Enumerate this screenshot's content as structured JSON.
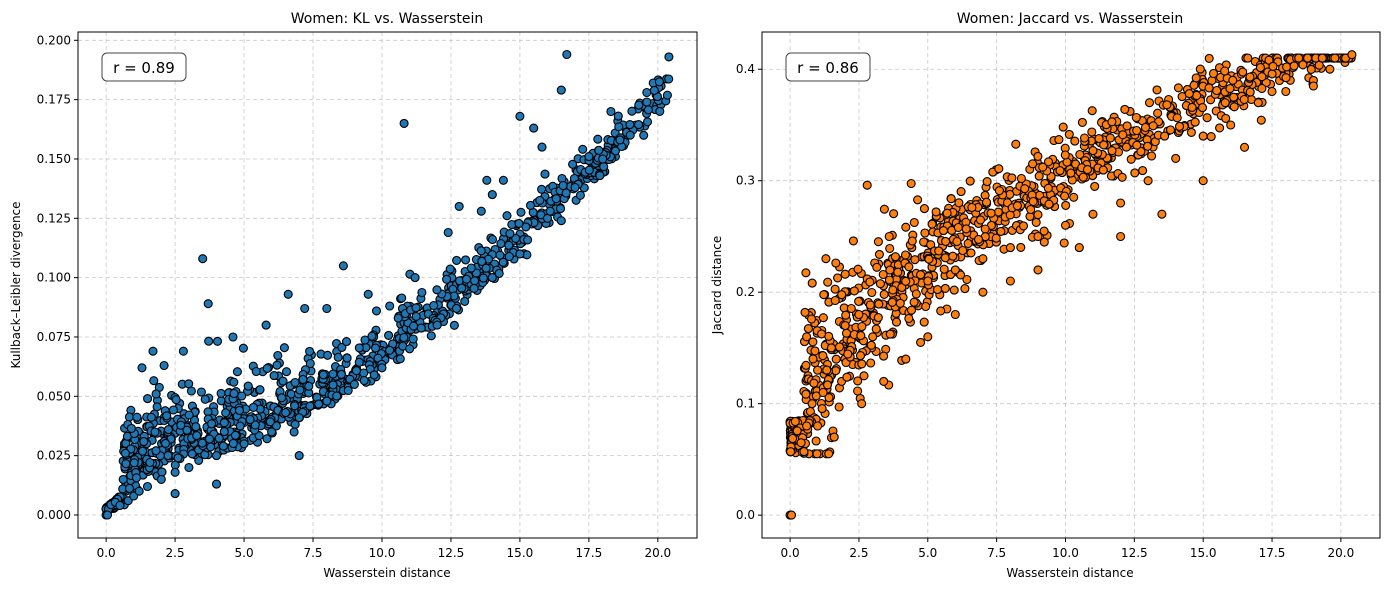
{
  "chart_data": [
    {
      "type": "scatter",
      "title": "Women: KL vs. Wasserstein",
      "xlabel": "Wasserstein distance",
      "ylabel": "Kullback–Leibler divergence",
      "xlim": [
        -1.02,
        21.42
      ],
      "ylim": [
        -0.0097,
        0.2035
      ],
      "xticks": [
        0.0,
        2.5,
        5.0,
        7.5,
        10.0,
        12.5,
        15.0,
        17.5,
        20.0
      ],
      "xtick_labels": [
        "0.0",
        "2.5",
        "5.0",
        "7.5",
        "10.0",
        "12.5",
        "15.0",
        "17.5",
        "20.0"
      ],
      "yticks": [
        0.0,
        0.025,
        0.05,
        0.075,
        0.1,
        0.125,
        0.15,
        0.175,
        0.2
      ],
      "ytick_labels": [
        "0.000",
        "0.025",
        "0.050",
        "0.075",
        "0.100",
        "0.125",
        "0.150",
        "0.175",
        "0.200"
      ],
      "grid": true,
      "annotation": "r = 0.89",
      "marker_color": "#1f77b4",
      "edge_color": "#000000",
      "points": [
        [
          0.0,
          0.0
        ],
        [
          0.05,
          0.0
        ],
        [
          0.5,
          0.004
        ],
        [
          0.8,
          0.006
        ],
        [
          1.0,
          0.008
        ],
        [
          1.2,
          0.01
        ],
        [
          1.5,
          0.012
        ],
        [
          2.0,
          0.015
        ],
        [
          2.5,
          0.018
        ],
        [
          3.0,
          0.02
        ],
        [
          4.0,
          0.025
        ],
        [
          5.0,
          0.03
        ],
        [
          6.0,
          0.035
        ],
        [
          7.0,
          0.041
        ],
        [
          8.0,
          0.048
        ],
        [
          9.0,
          0.055
        ],
        [
          10.0,
          0.062
        ],
        [
          11.0,
          0.07
        ],
        [
          12.0,
          0.08
        ],
        [
          13.0,
          0.09
        ],
        [
          14.0,
          0.1
        ],
        [
          15.0,
          0.11
        ],
        [
          16.0,
          0.125
        ],
        [
          17.0,
          0.138
        ],
        [
          18.0,
          0.15
        ],
        [
          19.0,
          0.16
        ],
        [
          20.4,
          0.193
        ],
        [
          16.7,
          0.194
        ],
        [
          16.5,
          0.179
        ],
        [
          19.6,
          0.178
        ],
        [
          19.6,
          0.174
        ],
        [
          18.3,
          0.17
        ],
        [
          3.5,
          0.108
        ],
        [
          3.7,
          0.089
        ],
        [
          1.7,
          0.069
        ],
        [
          10.8,
          0.165
        ],
        [
          8.6,
          0.105
        ],
        [
          15.0,
          0.168
        ],
        [
          15.5,
          0.163
        ],
        [
          15.8,
          0.155
        ],
        [
          17.5,
          0.151
        ],
        [
          17.9,
          0.143
        ],
        [
          14.4,
          0.141
        ],
        [
          13.8,
          0.141
        ],
        [
          12.4,
          0.119
        ],
        [
          12.8,
          0.13
        ],
        [
          13.6,
          0.128
        ],
        [
          14.0,
          0.135
        ],
        [
          16.1,
          0.128
        ],
        [
          16.5,
          0.124
        ],
        [
          7.2,
          0.087
        ],
        [
          9.5,
          0.093
        ],
        [
          11.2,
          0.1
        ],
        [
          6.6,
          0.093
        ],
        [
          2.8,
          0.069
        ],
        [
          2.1,
          0.063
        ],
        [
          0.7,
          0.026
        ],
        [
          1.3,
          0.062
        ],
        [
          4.6,
          0.075
        ],
        [
          5.8,
          0.08
        ],
        [
          8.0,
          0.087
        ],
        [
          9.8,
          0.086
        ],
        [
          7.0,
          0.025
        ],
        [
          2.5,
          0.009
        ],
        [
          4.0,
          0.013
        ]
      ]
    },
    {
      "type": "scatter",
      "title": "Women: Jaccard vs. Wasserstein",
      "xlabel": "Wasserstein distance",
      "ylabel": "Jaccard distance",
      "xlim": [
        -1.02,
        21.42
      ],
      "ylim": [
        -0.0205,
        0.4334
      ],
      "xticks": [
        0.0,
        2.5,
        5.0,
        7.5,
        10.0,
        12.5,
        15.0,
        17.5,
        20.0
      ],
      "xtick_labels": [
        "0.0",
        "2.5",
        "5.0",
        "7.5",
        "10.0",
        "12.5",
        "15.0",
        "17.5",
        "20.0"
      ],
      "yticks": [
        0.0,
        0.1,
        0.2,
        0.3,
        0.4
      ],
      "ytick_labels": [
        "0.0",
        "0.1",
        "0.2",
        "0.3",
        "0.4"
      ],
      "grid": true,
      "annotation": "r = 0.86",
      "marker_color": "#ff7f0e",
      "edge_color": "#000000",
      "points": [
        [
          0.0,
          0.0
        ],
        [
          0.05,
          0.0
        ],
        [
          0.4,
          0.065
        ],
        [
          0.5,
          0.057
        ],
        [
          0.6,
          0.08
        ],
        [
          0.8,
          0.1
        ],
        [
          1.0,
          0.13
        ],
        [
          1.2,
          0.11
        ],
        [
          1.5,
          0.15
        ],
        [
          2.0,
          0.17
        ],
        [
          2.5,
          0.18
        ],
        [
          3.0,
          0.16
        ],
        [
          4.0,
          0.19
        ],
        [
          5.0,
          0.21
        ],
        [
          6.0,
          0.22
        ],
        [
          7.0,
          0.23
        ],
        [
          8.0,
          0.24
        ],
        [
          9.0,
          0.25
        ],
        [
          10.0,
          0.26
        ],
        [
          11.0,
          0.27
        ],
        [
          12.0,
          0.28
        ],
        [
          13.0,
          0.3
        ],
        [
          14.0,
          0.32
        ],
        [
          15.0,
          0.34
        ],
        [
          16.0,
          0.35
        ],
        [
          17.0,
          0.37
        ],
        [
          18.0,
          0.38
        ],
        [
          19.0,
          0.39
        ],
        [
          20.4,
          0.413
        ],
        [
          18.3,
          0.403
        ],
        [
          16.7,
          0.393
        ],
        [
          19.6,
          0.4
        ],
        [
          2.8,
          0.296
        ],
        [
          0.6,
          0.16
        ],
        [
          1.3,
          0.23
        ],
        [
          2.3,
          0.246
        ],
        [
          3.6,
          0.25
        ],
        [
          5.3,
          0.272
        ],
        [
          6.6,
          0.276
        ],
        [
          7.6,
          0.291
        ],
        [
          8.4,
          0.302
        ],
        [
          10.8,
          0.31
        ],
        [
          13.6,
          0.34
        ],
        [
          15.8,
          0.37
        ],
        [
          17.5,
          0.38
        ],
        [
          1.0,
          0.08
        ],
        [
          1.6,
          0.07
        ],
        [
          2.6,
          0.1
        ],
        [
          3.4,
          0.12
        ],
        [
          4.2,
          0.14
        ],
        [
          5.0,
          0.16
        ],
        [
          6.0,
          0.18
        ],
        [
          7.0,
          0.2
        ],
        [
          8.0,
          0.21
        ],
        [
          9.0,
          0.22
        ],
        [
          10.5,
          0.24
        ],
        [
          12.0,
          0.25
        ],
        [
          13.5,
          0.27
        ],
        [
          15.0,
          0.3
        ],
        [
          16.5,
          0.33
        ],
        [
          19.0,
          0.385
        ]
      ]
    }
  ]
}
